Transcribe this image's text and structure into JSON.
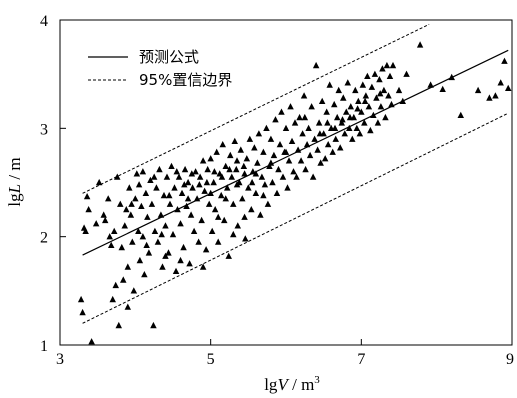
{
  "chart_data": {
    "type": "scatter",
    "title": "",
    "xlabel": {
      "prefix": "lg",
      "var": "V",
      "sep": " / ",
      "unit": "m",
      "sup": "3"
    },
    "ylabel": {
      "prefix": "lg",
      "var": "L",
      "sep": " / ",
      "unit": "m"
    },
    "xlim": [
      3,
      9
    ],
    "ylim": [
      1,
      4
    ],
    "xticks": [
      3,
      5,
      7,
      9
    ],
    "yticks": [
      1,
      2,
      3,
      4
    ],
    "grid": false,
    "legend_position": "top-left",
    "legend": [
      {
        "label": "预测公式",
        "style": "solid"
      },
      {
        "label": "95%置信边界",
        "style": "dashed"
      }
    ],
    "lines": {
      "predict": {
        "x": [
          3.3,
          8.95
        ],
        "y": [
          1.83,
          3.72
        ]
      },
      "upper": {
        "x": [
          3.3,
          7.9
        ],
        "y": [
          2.4,
          3.96
        ]
      },
      "lower": {
        "x": [
          3.3,
          8.95
        ],
        "y": [
          1.2,
          3.14
        ]
      }
    },
    "series": [
      {
        "marker": "triangle",
        "points": [
          [
            3.28,
            1.42
          ],
          [
            3.3,
            1.3
          ],
          [
            3.32,
            2.08
          ],
          [
            3.34,
            2.05
          ],
          [
            3.36,
            2.37
          ],
          [
            3.38,
            2.25
          ],
          [
            3.42,
            1.03
          ],
          [
            3.48,
            2.12
          ],
          [
            3.52,
            2.5
          ],
          [
            3.58,
            2.2
          ],
          [
            3.6,
            2.15
          ],
          [
            3.64,
            2.35
          ],
          [
            3.66,
            2.0
          ],
          [
            3.68,
            1.92
          ],
          [
            3.7,
            1.42
          ],
          [
            3.72,
            2.05
          ],
          [
            3.74,
            1.55
          ],
          [
            3.76,
            2.55
          ],
          [
            3.78,
            1.18
          ],
          [
            3.8,
            2.3
          ],
          [
            3.82,
            1.9
          ],
          [
            3.84,
            1.6
          ],
          [
            3.86,
            2.1
          ],
          [
            3.88,
            2.25
          ],
          [
            3.9,
            1.72
          ],
          [
            3.9,
            1.35
          ],
          [
            3.92,
            2.45
          ],
          [
            3.94,
            2.2
          ],
          [
            3.96,
            1.95
          ],
          [
            3.98,
            1.5
          ],
          [
            4.0,
            2.35
          ],
          [
            4.02,
            2.58
          ],
          [
            4.04,
            2.05
          ],
          [
            4.06,
            1.78
          ],
          [
            4.08,
            2.28
          ],
          [
            4.1,
            2.6
          ],
          [
            4.1,
            2.0
          ],
          [
            4.12,
            1.65
          ],
          [
            4.14,
            2.4
          ],
          [
            4.16,
            2.18
          ],
          [
            4.18,
            1.85
          ],
          [
            4.2,
            2.52
          ],
          [
            4.22,
            2.3
          ],
          [
            4.24,
            1.18
          ],
          [
            4.26,
            2.05
          ],
          [
            4.28,
            2.45
          ],
          [
            4.3,
            1.95
          ],
          [
            4.32,
            2.62
          ],
          [
            4.34,
            2.2
          ],
          [
            4.36,
            1.72
          ],
          [
            4.38,
            2.38
          ],
          [
            4.4,
            2.1
          ],
          [
            4.42,
            2.55
          ],
          [
            4.44,
            1.85
          ],
          [
            4.46,
            2.3
          ],
          [
            4.48,
            2.65
          ],
          [
            4.5,
            2.02
          ],
          [
            4.52,
            2.45
          ],
          [
            4.54,
            1.68
          ],
          [
            4.56,
            2.25
          ],
          [
            4.58,
            2.55
          ],
          [
            4.6,
            2.12
          ],
          [
            4.62,
            2.4
          ],
          [
            4.64,
            1.9
          ],
          [
            4.66,
            2.62
          ],
          [
            4.68,
            2.28
          ],
          [
            4.7,
            2.5
          ],
          [
            4.72,
            1.75
          ],
          [
            4.74,
            2.2
          ],
          [
            4.76,
            2.45
          ],
          [
            4.78,
            2.05
          ],
          [
            4.8,
            2.6
          ],
          [
            4.82,
            2.35
          ],
          [
            4.84,
            1.95
          ],
          [
            4.86,
            2.55
          ],
          [
            4.88,
            2.15
          ],
          [
            4.9,
            2.7
          ],
          [
            4.92,
            2.42
          ],
          [
            4.94,
            1.88
          ],
          [
            4.96,
            2.62
          ],
          [
            4.98,
            2.3
          ],
          [
            5.0,
            2.72
          ],
          [
            5.02,
            2.05
          ],
          [
            5.04,
            2.5
          ],
          [
            5.06,
            2.25
          ],
          [
            5.08,
            2.78
          ],
          [
            5.1,
            1.95
          ],
          [
            5.12,
            2.58
          ],
          [
            5.14,
            2.38
          ],
          [
            5.16,
            2.85
          ],
          [
            5.18,
            2.15
          ],
          [
            5.2,
            2.65
          ],
          [
            5.22,
            2.45
          ],
          [
            5.24,
            1.82
          ],
          [
            5.26,
            2.75
          ],
          [
            5.28,
            2.55
          ],
          [
            5.3,
            2.3
          ],
          [
            5.32,
            2.88
          ],
          [
            5.34,
            2.62
          ],
          [
            5.36,
            2.1
          ],
          [
            5.38,
            2.5
          ],
          [
            5.4,
            2.8
          ],
          [
            5.42,
            2.35
          ],
          [
            5.44,
            2.65
          ],
          [
            5.46,
            1.98
          ],
          [
            5.48,
            2.72
          ],
          [
            5.5,
            2.45
          ],
          [
            5.52,
            2.9
          ],
          [
            5.54,
            2.25
          ],
          [
            5.56,
            2.6
          ],
          [
            5.58,
            2.82
          ],
          [
            5.6,
            2.4
          ],
          [
            5.62,
            2.68
          ],
          [
            5.64,
            2.95
          ],
          [
            5.66,
            2.2
          ],
          [
            5.68,
            2.55
          ],
          [
            5.7,
            2.78
          ],
          [
            5.72,
            2.48
          ],
          [
            5.74,
            3.0
          ],
          [
            5.76,
            2.3
          ],
          [
            5.78,
            2.65
          ],
          [
            5.8,
            2.9
          ],
          [
            5.82,
            2.5
          ],
          [
            5.84,
            2.75
          ],
          [
            5.86,
            3.08
          ],
          [
            5.88,
            2.4
          ],
          [
            5.9,
            2.62
          ],
          [
            5.92,
            2.85
          ],
          [
            5.94,
            3.15
          ],
          [
            5.96,
            2.55
          ],
          [
            5.98,
            2.78
          ],
          [
            6.0,
            3.0
          ],
          [
            6.02,
            2.45
          ],
          [
            6.04,
            2.7
          ],
          [
            6.06,
            3.2
          ],
          [
            6.08,
            2.88
          ],
          [
            6.1,
            2.6
          ],
          [
            6.12,
            3.05
          ],
          [
            6.14,
            2.55
          ],
          [
            6.16,
            2.8
          ],
          [
            6.18,
            3.1
          ],
          [
            6.2,
            2.7
          ],
          [
            6.22,
            2.95
          ],
          [
            6.24,
            3.3
          ],
          [
            6.26,
            2.62
          ],
          [
            6.28,
            2.85
          ],
          [
            6.3,
            3.0
          ],
          [
            6.32,
            2.75
          ],
          [
            6.34,
            3.2
          ],
          [
            6.36,
            2.55
          ],
          [
            6.38,
            2.9
          ],
          [
            6.4,
            3.58
          ],
          [
            6.42,
            2.8
          ],
          [
            6.44,
            3.05
          ],
          [
            6.46,
            2.68
          ],
          [
            6.48,
            3.25
          ],
          [
            6.5,
            2.95
          ],
          [
            6.52,
            2.72
          ],
          [
            6.54,
            3.15
          ],
          [
            6.56,
            2.85
          ],
          [
            6.58,
            3.4
          ],
          [
            6.6,
            3.0
          ],
          [
            6.62,
            2.78
          ],
          [
            6.64,
            3.22
          ],
          [
            6.66,
            2.9
          ],
          [
            6.68,
            3.1
          ],
          [
            6.7,
            3.35
          ],
          [
            6.72,
            2.82
          ],
          [
            6.74,
            3.05
          ],
          [
            6.76,
            3.28
          ],
          [
            6.78,
            2.95
          ],
          [
            6.8,
            3.15
          ],
          [
            6.82,
            3.42
          ],
          [
            6.84,
            3.0
          ],
          [
            6.86,
            3.2
          ],
          [
            6.88,
            2.9
          ],
          [
            6.9,
            3.1
          ],
          [
            6.92,
            3.35
          ],
          [
            6.94,
            3.0
          ],
          [
            6.96,
            3.25
          ],
          [
            6.98,
            2.95
          ],
          [
            7.0,
            3.15
          ],
          [
            7.02,
            3.4
          ],
          [
            7.04,
            3.05
          ],
          [
            7.06,
            3.3
          ],
          [
            7.08,
            3.48
          ],
          [
            7.1,
            3.2
          ],
          [
            7.12,
            2.98
          ],
          [
            7.14,
            3.38
          ],
          [
            7.16,
            3.12
          ],
          [
            7.18,
            3.5
          ],
          [
            7.2,
            3.28
          ],
          [
            7.22,
            3.05
          ],
          [
            7.24,
            3.45
          ],
          [
            7.26,
            3.2
          ],
          [
            7.28,
            3.55
          ],
          [
            7.3,
            3.35
          ],
          [
            7.32,
            3.1
          ],
          [
            7.34,
            3.58
          ],
          [
            7.36,
            3.3
          ],
          [
            7.38,
            3.48
          ],
          [
            7.4,
            3.22
          ],
          [
            7.42,
            3.58
          ],
          [
            7.5,
            3.35
          ],
          [
            7.55,
            3.25
          ],
          [
            7.6,
            3.5
          ],
          [
            7.78,
            3.77
          ],
          [
            7.92,
            3.4
          ],
          [
            8.08,
            3.36
          ],
          [
            8.2,
            3.47
          ],
          [
            8.32,
            3.12
          ],
          [
            8.55,
            3.35
          ],
          [
            8.7,
            3.28
          ],
          [
            8.78,
            3.3
          ],
          [
            8.85,
            3.42
          ],
          [
            8.9,
            3.62
          ],
          [
            8.95,
            3.37
          ],
          [
            4.05,
            2.48
          ],
          [
            4.25,
            2.55
          ],
          [
            4.45,
            2.38
          ],
          [
            4.55,
            2.6
          ],
          [
            4.65,
            2.48
          ],
          [
            4.75,
            2.58
          ],
          [
            4.85,
            2.48
          ],
          [
            4.95,
            2.5
          ],
          [
            5.05,
            2.6
          ],
          [
            5.15,
            2.55
          ],
          [
            5.25,
            2.62
          ],
          [
            5.35,
            2.48
          ],
          [
            5.45,
            2.58
          ],
          [
            5.55,
            2.5
          ],
          [
            4.35,
            2.02
          ],
          [
            4.6,
            1.78
          ],
          [
            4.9,
            1.72
          ],
          [
            5.1,
            2.18
          ],
          [
            5.3,
            2.02
          ],
          [
            5.45,
            2.18
          ],
          [
            4.15,
            1.92
          ],
          [
            4.4,
            1.82
          ],
          [
            3.95,
            2.3
          ],
          [
            4.7,
            2.35
          ],
          [
            5.0,
            2.4
          ],
          [
            5.2,
            2.35
          ],
          [
            5.35,
            2.7
          ],
          [
            5.6,
            2.58
          ],
          [
            5.7,
            2.38
          ],
          [
            5.8,
            2.68
          ],
          [
            6.0,
            2.78
          ],
          [
            6.25,
            3.1
          ],
          [
            6.45,
            2.95
          ],
          [
            6.55,
            3.05
          ],
          [
            6.65,
            3.0
          ],
          [
            6.75,
            3.08
          ],
          [
            6.85,
            3.1
          ],
          [
            6.95,
            3.18
          ],
          [
            7.05,
            3.25
          ],
          [
            7.25,
            3.32
          ]
        ]
      }
    ]
  }
}
